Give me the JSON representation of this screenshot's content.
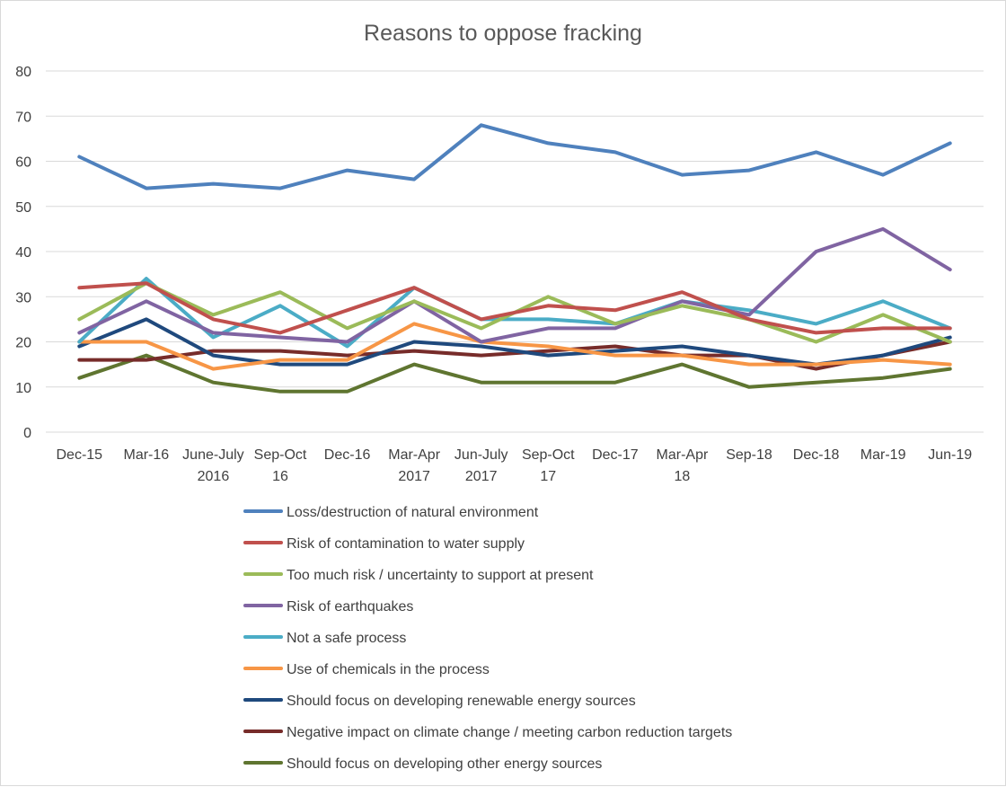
{
  "chart_data": {
    "type": "line",
    "title": "Reasons to oppose fracking",
    "xlabel": "",
    "ylabel": "",
    "ylim": [
      0,
      80
    ],
    "yticks": [
      0,
      10,
      20,
      30,
      40,
      50,
      60,
      70,
      80
    ],
    "grid": true,
    "legend_position": "bottom",
    "categories": [
      [
        "Dec-15"
      ],
      [
        "Mar-16"
      ],
      [
        "June-July",
        "2016"
      ],
      [
        "Sep-Oct",
        "16"
      ],
      [
        "Dec-16"
      ],
      [
        "Mar-Apr",
        "2017"
      ],
      [
        "Jun-July",
        "2017"
      ],
      [
        "Sep-Oct",
        "17"
      ],
      [
        "Dec-17"
      ],
      [
        "Mar-Apr",
        "18"
      ],
      [
        "Sep-18"
      ],
      [
        "Dec-18"
      ],
      [
        "Mar-19"
      ],
      [
        "Jun-19"
      ]
    ],
    "series": [
      {
        "name": "Loss/destruction of natural environment",
        "color": "#4f81bd",
        "values": [
          61,
          54,
          55,
          54,
          58,
          56,
          68,
          64,
          62,
          57,
          58,
          62,
          57,
          64
        ]
      },
      {
        "name": "Risk of contamination to water supply",
        "color": "#c0504d",
        "values": [
          32,
          33,
          25,
          22,
          27,
          32,
          25,
          28,
          27,
          31,
          25,
          22,
          23,
          23
        ]
      },
      {
        "name": "Too much risk / uncertainty to support at present",
        "color": "#9bbb59",
        "values": [
          25,
          33,
          26,
          31,
          23,
          29,
          23,
          30,
          24,
          28,
          25,
          20,
          26,
          20
        ]
      },
      {
        "name": "Risk of earthquakes",
        "color": "#8064a2",
        "values": [
          22,
          29,
          22,
          21,
          20,
          29,
          20,
          23,
          23,
          29,
          26,
          40,
          45,
          36
        ]
      },
      {
        "name": "Not a safe process",
        "color": "#4bacc6",
        "values": [
          20,
          34,
          21,
          28,
          19,
          32,
          25,
          25,
          24,
          29,
          27,
          24,
          29,
          23
        ]
      },
      {
        "name": "Use of chemicals in the process",
        "color": "#f79646",
        "values": [
          20,
          20,
          14,
          16,
          16,
          24,
          20,
          19,
          17,
          17,
          15,
          15,
          16,
          15
        ]
      },
      {
        "name": "Should focus on developing renewable energy sources",
        "color": "#1f497d",
        "values": [
          19,
          25,
          17,
          15,
          15,
          20,
          19,
          17,
          18,
          19,
          17,
          15,
          17,
          21
        ]
      },
      {
        "name": "Negative impact on climate change / meeting carbon reduction targets",
        "color": "#772c2a",
        "values": [
          16,
          16,
          18,
          18,
          17,
          18,
          17,
          18,
          19,
          17,
          17,
          14,
          17,
          20
        ]
      },
      {
        "name": "Should focus on developing other energy sources",
        "color": "#5f7530",
        "values": [
          12,
          17,
          11,
          9,
          9,
          15,
          11,
          11,
          11,
          15,
          10,
          11,
          12,
          14
        ]
      }
    ]
  }
}
